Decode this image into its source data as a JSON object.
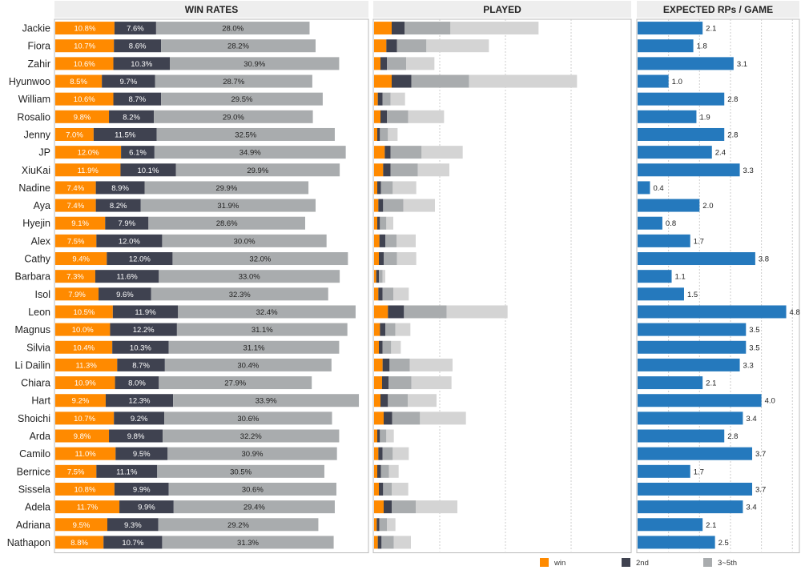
{
  "chart_data": {
    "type": "bar",
    "panels": {
      "win_rates": {
        "title": "WIN RATES"
      },
      "played": {
        "title": "PLAYED"
      },
      "expected": {
        "title": "EXPECTED RPs / GAME"
      }
    },
    "legend": [
      {
        "label": "win",
        "color": "#ff8a00"
      },
      {
        "label": "2nd",
        "color": "#3f4250"
      },
      {
        "label": "3~5th",
        "color": "#a9acae"
      }
    ],
    "colors": {
      "win": "#ff8a00",
      "second": "#3f4250",
      "third_fifth": "#a9acae",
      "played_rest": "#d4d4d4",
      "expected": "#2579bd",
      "grid": "#cccccc",
      "header_bg": "#eeeeee"
    },
    "categories": [
      "Jackie",
      "Fiora",
      "Zahir",
      "Hyunwoo",
      "William",
      "Rosalio",
      "Jenny",
      "JP",
      "XiuKai",
      "Nadine",
      "Aya",
      "Hyejin",
      "Alex",
      "Cathy",
      "Barbara",
      "Isol",
      "Leon",
      "Magnus",
      "Silvia",
      "Li Dailin",
      "Chiara",
      "Hart",
      "Shoichi",
      "Arda",
      "Camilo",
      "Bernice",
      "Sissela",
      "Adela",
      "Adriana",
      "Nathapon"
    ],
    "series": [
      {
        "name": "win",
        "values": [
          10.8,
          10.7,
          10.6,
          8.5,
          10.6,
          9.8,
          7.0,
          12.0,
          11.9,
          7.4,
          7.4,
          9.1,
          7.5,
          9.4,
          7.3,
          7.9,
          10.5,
          10.0,
          10.4,
          11.3,
          10.9,
          9.2,
          10.7,
          9.8,
          11.0,
          7.5,
          10.8,
          11.7,
          9.5,
          8.8
        ],
        "labels": [
          "10.8%",
          "10.7%",
          "10.6%",
          "8.5%",
          "10.6%",
          "9.8%",
          "7.0%",
          "12.0%",
          "11.9%",
          "7.4%",
          "7.4%",
          "9.1%",
          "7.5%",
          "9.4%",
          "7.3%",
          "7.9%",
          "10.5%",
          "10.0%",
          "10.4%",
          "11.3%",
          "10.9%",
          "9.2%",
          "10.7%",
          "9.8%",
          "11.0%",
          "7.5%",
          "10.8%",
          "11.7%",
          "9.5%",
          "8.8%"
        ]
      },
      {
        "name": "2nd",
        "values": [
          7.6,
          8.6,
          10.3,
          9.7,
          8.7,
          8.2,
          11.5,
          6.1,
          10.1,
          8.9,
          8.2,
          7.9,
          12.0,
          12.0,
          11.6,
          9.6,
          11.9,
          12.2,
          10.3,
          8.7,
          8.0,
          12.3,
          9.2,
          9.8,
          9.5,
          11.1,
          9.9,
          9.9,
          9.3,
          10.7
        ],
        "labels": [
          "7.6%",
          "8.6%",
          "10.3%",
          "9.7%",
          "8.7%",
          "8.2%",
          "11.5%",
          "6.1%",
          "10.1%",
          "8.9%",
          "8.2%",
          "7.9%",
          "12.0%",
          "12.0%",
          "11.6%",
          "9.6%",
          "11.9%",
          "12.2%",
          "10.3%",
          "8.7%",
          "8.0%",
          "12.3%",
          "9.2%",
          "9.8%",
          "9.5%",
          "11.1%",
          "9.9%",
          "9.9%",
          "9.3%",
          "10.7%"
        ]
      },
      {
        "name": "3~5th",
        "values": [
          28.0,
          28.2,
          30.9,
          28.7,
          29.5,
          29.0,
          32.5,
          34.9,
          29.9,
          29.9,
          31.9,
          28.6,
          30.0,
          32.0,
          33.0,
          32.3,
          32.4,
          31.1,
          31.1,
          30.4,
          27.9,
          33.9,
          30.6,
          32.2,
          30.9,
          30.5,
          30.6,
          29.4,
          29.2,
          31.3
        ],
        "labels": [
          "28.0%",
          "28.2%",
          "30.9%",
          "28.7%",
          "29.5%",
          "29.0%",
          "32.5%",
          "34.9%",
          "29.9%",
          "29.9%",
          "31.9%",
          "28.6%",
          "30.0%",
          "32.0%",
          "33.0%",
          "32.3%",
          "32.4%",
          "31.1%",
          "31.1%",
          "30.4%",
          "27.9%",
          "33.9%",
          "30.6%",
          "32.2%",
          "30.9%",
          "30.5%",
          "30.6%",
          "29.4%",
          "29.2%",
          "31.3%"
        ]
      }
    ],
    "played": {
      "win": [
        33,
        23,
        12,
        33,
        7,
        12,
        6,
        20,
        17,
        6,
        8,
        6,
        10,
        9,
        4,
        8,
        26,
        11,
        9,
        16,
        15,
        12,
        18,
        6,
        8,
        6,
        9,
        18,
        5,
        7
      ],
      "second": [
        24,
        20,
        12,
        37,
        9,
        12,
        5,
        11,
        14,
        7,
        9,
        5,
        11,
        9,
        5,
        8,
        30,
        10,
        7,
        13,
        12,
        14,
        16,
        5,
        8,
        7,
        8,
        15,
        5,
        7
      ],
      "third_fifth": [
        86,
        55,
        36,
        108,
        15,
        40,
        15,
        58,
        51,
        22,
        38,
        12,
        21,
        25,
        7,
        20,
        80,
        19,
        16,
        38,
        43,
        37,
        52,
        12,
        19,
        15,
        16,
        45,
        14,
        23
      ],
      "rest": [
        165,
        117,
        53,
        202,
        27,
        67,
        18,
        77,
        59,
        44,
        59,
        13,
        36,
        36,
        5,
        29,
        114,
        28,
        18,
        80,
        75,
        54,
        86,
        14,
        30,
        18,
        31,
        78,
        16,
        32
      ]
    },
    "expected": {
      "values": [
        2.1,
        1.8,
        3.1,
        1.0,
        2.8,
        1.9,
        2.8,
        2.4,
        3.3,
        0.4,
        2.0,
        0.8,
        1.7,
        3.8,
        1.1,
        1.5,
        4.8,
        3.5,
        3.5,
        3.3,
        2.1,
        4.0,
        3.4,
        2.8,
        3.7,
        1.7,
        3.7,
        3.4,
        2.1,
        2.5
      ],
      "labels": [
        "2.1",
        "1.8",
        "3.1",
        "1.0",
        "2.8",
        "1.9",
        "2.8",
        "2.4",
        "3.3",
        "0.4",
        "2.0",
        "0.8",
        "1.7",
        "3.8",
        "1.1",
        "1.5",
        "4.8",
        "3.5",
        "3.5",
        "3.3",
        "2.1",
        "4.0",
        "3.4",
        "2.8",
        "3.7",
        "1.7",
        "3.7",
        "3.4",
        "2.1",
        "2.5"
      ],
      "xlim": [
        0,
        5.2
      ]
    },
    "win_rates_xlim": [
      0,
      57
    ],
    "played_xlim": [
      0,
      480
    ],
    "grid": true
  }
}
